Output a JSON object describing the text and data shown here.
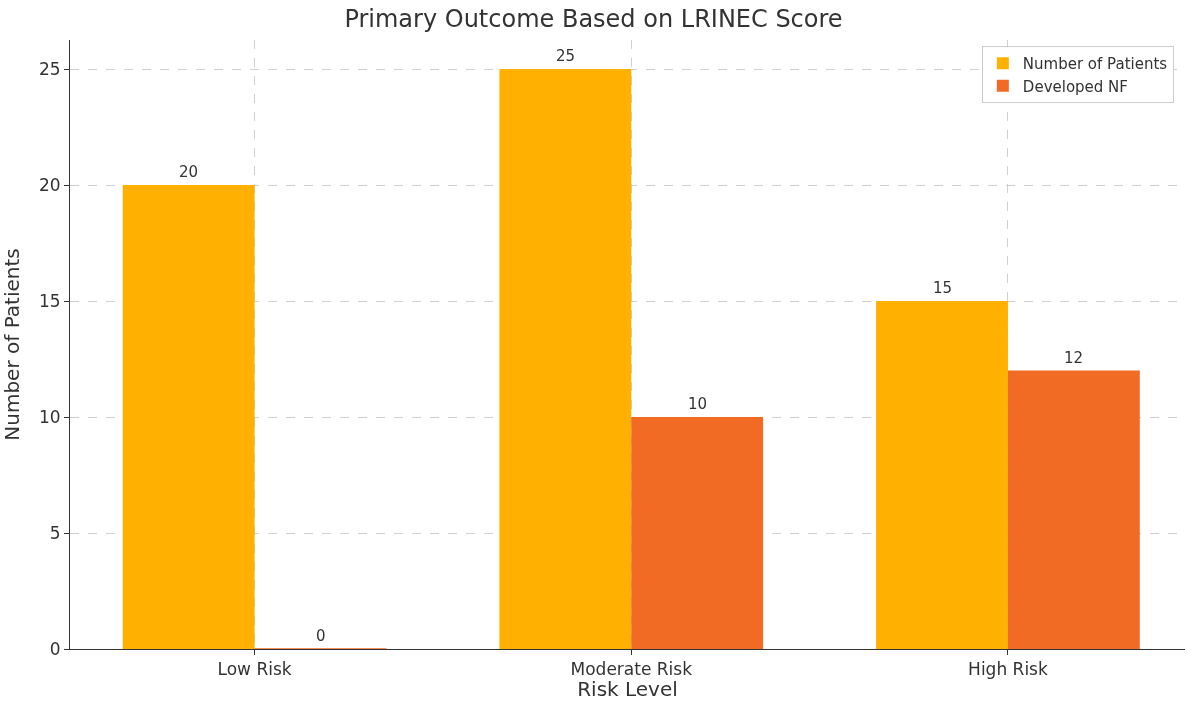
{
  "chart_data": {
    "type": "bar",
    "title": "Primary Outcome Based on LRINEC Score",
    "xlabel": "Risk Level",
    "ylabel": "Number of Patients",
    "categories": [
      "Low Risk",
      "Moderate Risk",
      "High Risk"
    ],
    "series": [
      {
        "name": "Number of Patients",
        "color": "#ffb000",
        "values": [
          20,
          25,
          15
        ]
      },
      {
        "name": "Developed NF",
        "color": "#f26b24",
        "values": [
          0,
          10,
          12
        ]
      }
    ],
    "ylim": [
      0,
      26.25
    ],
    "yticks": [
      0,
      5,
      10,
      15,
      20,
      25
    ],
    "grid": true,
    "legend": "top right",
    "data_labels": true
  }
}
